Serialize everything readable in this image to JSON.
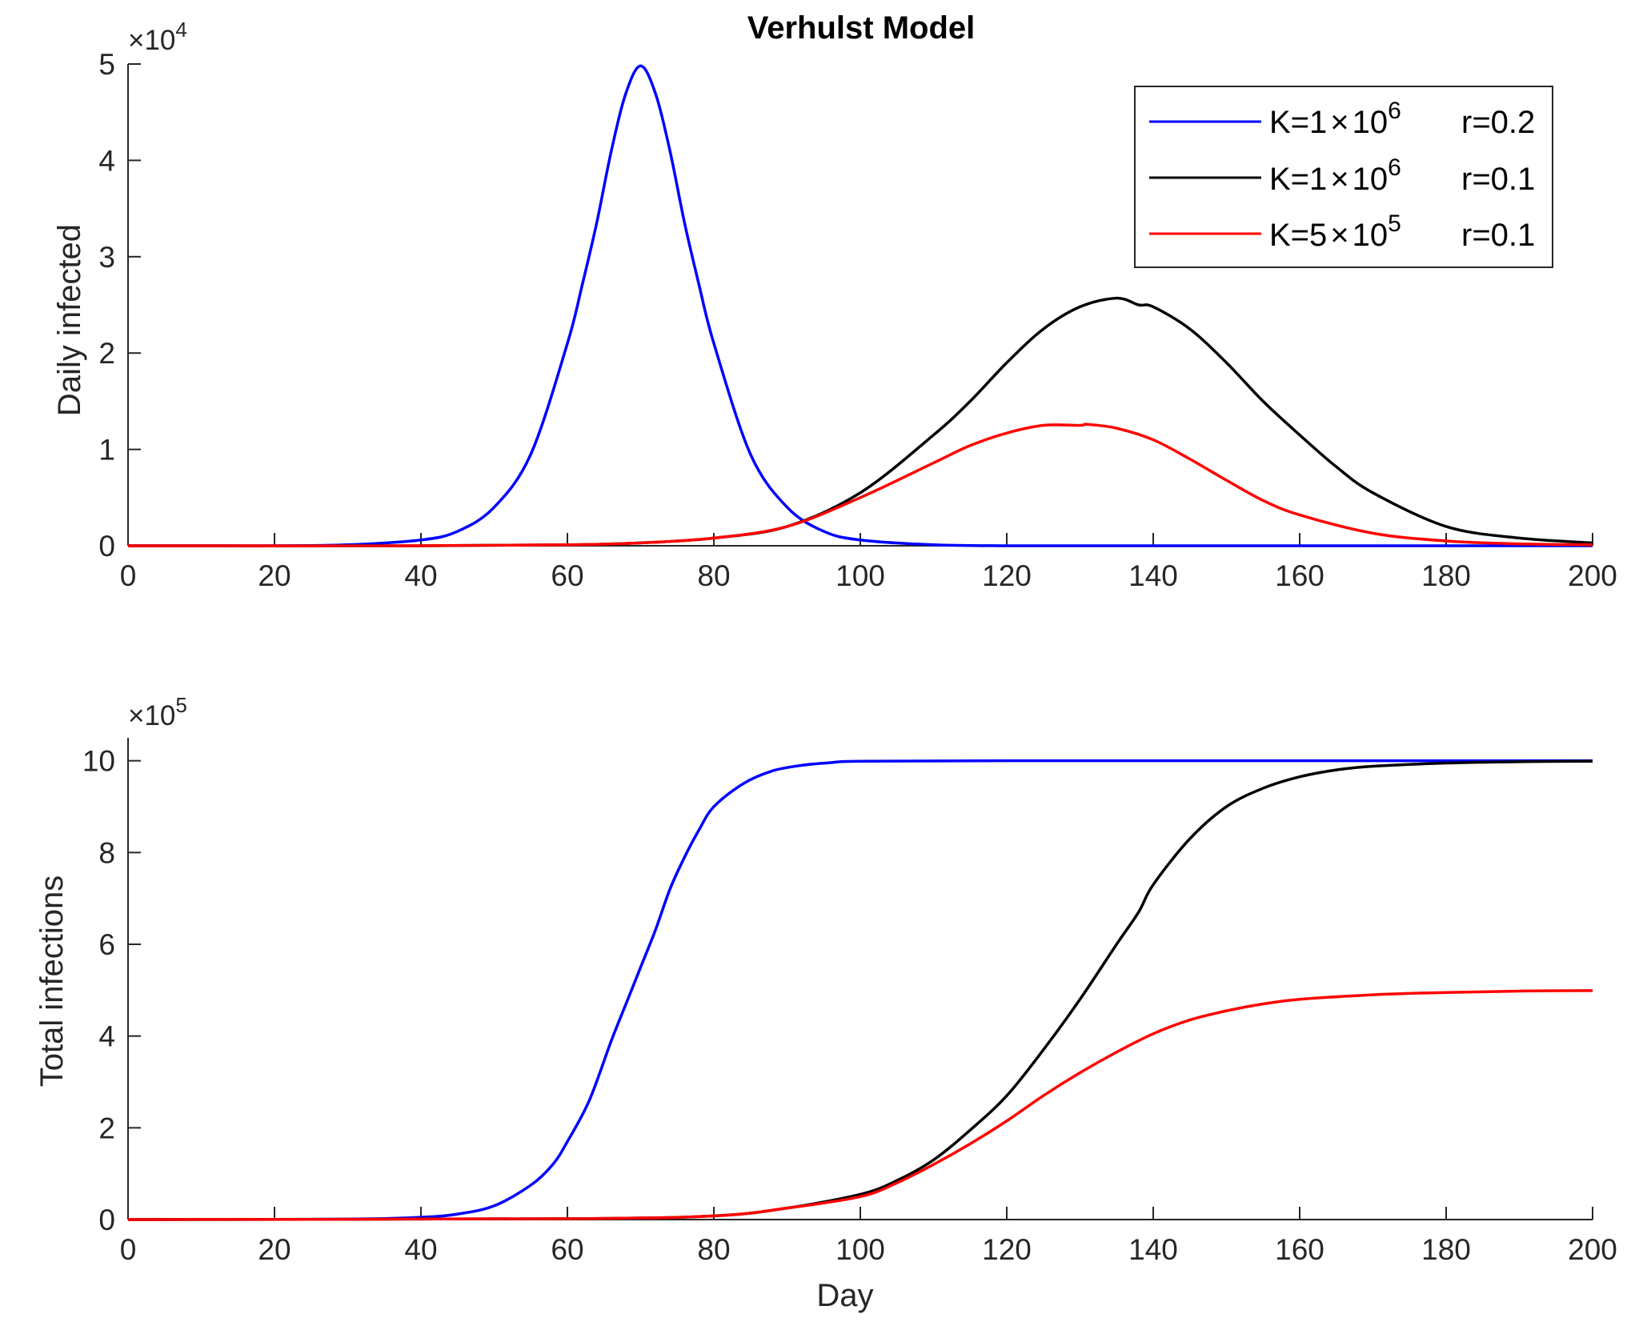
{
  "chart_data": [
    {
      "type": "line",
      "title": "Verhulst Model",
      "xlabel": "",
      "ylabel": "Daily infected",
      "xlim": [
        0,
        200
      ],
      "ylim": [
        0,
        5
      ],
      "y_multiplier": "×10",
      "y_multiplier_exp": "4",
      "x_ticks": [
        "0",
        "20",
        "40",
        "60",
        "80",
        "100",
        "120",
        "140",
        "160",
        "180",
        "200"
      ],
      "y_ticks": [
        "0",
        "1",
        "2",
        "3",
        "4",
        "5"
      ],
      "grid": false,
      "legend_position": "top-right",
      "legend": [
        {
          "k_base": "K=1",
          "k_times": "×",
          "k_ten": "10",
          "k_exp": "6",
          "r": "r=0.2",
          "color": "#0000ff"
        },
        {
          "k_base": "K=1",
          "k_times": "×",
          "k_ten": "10",
          "k_exp": "6",
          "r": "r=0.1",
          "color": "#000000"
        },
        {
          "k_base": "K=5",
          "k_times": "×",
          "k_ten": "10",
          "k_exp": "5",
          "r": "r=0.1",
          "color": "#ff0000"
        }
      ],
      "series": [
        {
          "color": "#0000ff",
          "x": [
            0,
            10,
            20,
            30,
            40,
            45,
            50,
            55,
            60,
            62,
            64,
            66,
            68,
            70,
            72,
            74,
            76,
            78,
            80,
            85,
            90,
            95,
            100,
            110,
            120,
            140,
            160,
            180,
            200
          ],
          "y": [
            0,
            0,
            0,
            0.01,
            0.06,
            0.15,
            0.4,
            0.95,
            2.1,
            2.7,
            3.35,
            4.1,
            4.7,
            4.98,
            4.7,
            4.1,
            3.35,
            2.7,
            2.1,
            0.95,
            0.4,
            0.15,
            0.06,
            0.01,
            0,
            0,
            0,
            0,
            0
          ]
        },
        {
          "color": "#000000",
          "x": [
            0,
            40,
            60,
            70,
            80,
            90,
            100,
            110,
            115,
            120,
            125,
            130,
            135,
            138,
            140,
            145,
            150,
            155,
            160,
            165,
            170,
            180,
            190,
            200
          ],
          "y": [
            0,
            0,
            0.01,
            0.03,
            0.08,
            0.2,
            0.55,
            1.15,
            1.5,
            1.9,
            2.25,
            2.48,
            2.57,
            2.5,
            2.48,
            2.25,
            1.9,
            1.5,
            1.15,
            0.82,
            0.55,
            0.2,
            0.08,
            0.03
          ]
        },
        {
          "color": "#ff0000",
          "x": [
            0,
            40,
            60,
            70,
            80,
            90,
            100,
            110,
            115,
            120,
            125,
            130,
            131,
            135,
            140,
            145,
            150,
            155,
            160,
            170,
            180,
            190,
            200
          ],
          "y": [
            0,
            0,
            0.01,
            0.03,
            0.08,
            0.2,
            0.5,
            0.86,
            1.04,
            1.17,
            1.25,
            1.25,
            1.26,
            1.22,
            1.1,
            0.9,
            0.68,
            0.47,
            0.32,
            0.13,
            0.05,
            0.02,
            0.01
          ]
        }
      ]
    },
    {
      "type": "line",
      "title": "",
      "xlabel": "Day",
      "ylabel": "Total infections",
      "xlim": [
        0,
        200
      ],
      "ylim": [
        0,
        10.5
      ],
      "y_multiplier": "×10",
      "y_multiplier_exp": "5",
      "x_ticks": [
        "0",
        "20",
        "40",
        "60",
        "80",
        "100",
        "120",
        "140",
        "160",
        "180",
        "200"
      ],
      "y_ticks": [
        "0",
        "2",
        "4",
        "6",
        "8",
        "10"
      ],
      "grid": false,
      "series": [
        {
          "color": "#0000ff",
          "x": [
            0,
            30,
            40,
            45,
            50,
            55,
            58,
            60,
            63,
            66,
            68,
            70,
            72,
            74,
            76,
            78,
            80,
            84,
            88,
            92,
            96,
            100,
            120,
            150,
            200
          ],
          "y": [
            0,
            0.01,
            0.05,
            0.12,
            0.3,
            0.75,
            1.2,
            1.7,
            2.6,
            3.9,
            4.7,
            5.5,
            6.3,
            7.2,
            7.9,
            8.5,
            9.0,
            9.5,
            9.78,
            9.9,
            9.96,
            9.99,
            10,
            10,
            10
          ]
        },
        {
          "color": "#000000",
          "x": [
            0,
            60,
            80,
            90,
            100,
            105,
            110,
            115,
            120,
            125,
            130,
            135,
            138,
            140,
            145,
            150,
            155,
            160,
            165,
            170,
            180,
            190,
            200
          ],
          "y": [
            0,
            0.02,
            0.08,
            0.25,
            0.55,
            0.85,
            1.3,
            1.95,
            2.7,
            3.7,
            4.8,
            6.0,
            6.7,
            7.3,
            8.3,
            9.0,
            9.4,
            9.65,
            9.8,
            9.88,
            9.95,
            9.98,
            9.99
          ]
        },
        {
          "color": "#ff0000",
          "x": [
            0,
            60,
            80,
            90,
            100,
            105,
            110,
            115,
            120,
            125,
            130,
            135,
            140,
            145,
            150,
            155,
            160,
            170,
            180,
            190,
            200
          ],
          "y": [
            0,
            0.02,
            0.08,
            0.25,
            0.5,
            0.8,
            1.2,
            1.65,
            2.15,
            2.7,
            3.2,
            3.65,
            4.05,
            4.35,
            4.55,
            4.7,
            4.8,
            4.9,
            4.95,
            4.98,
            4.99
          ]
        }
      ]
    }
  ]
}
